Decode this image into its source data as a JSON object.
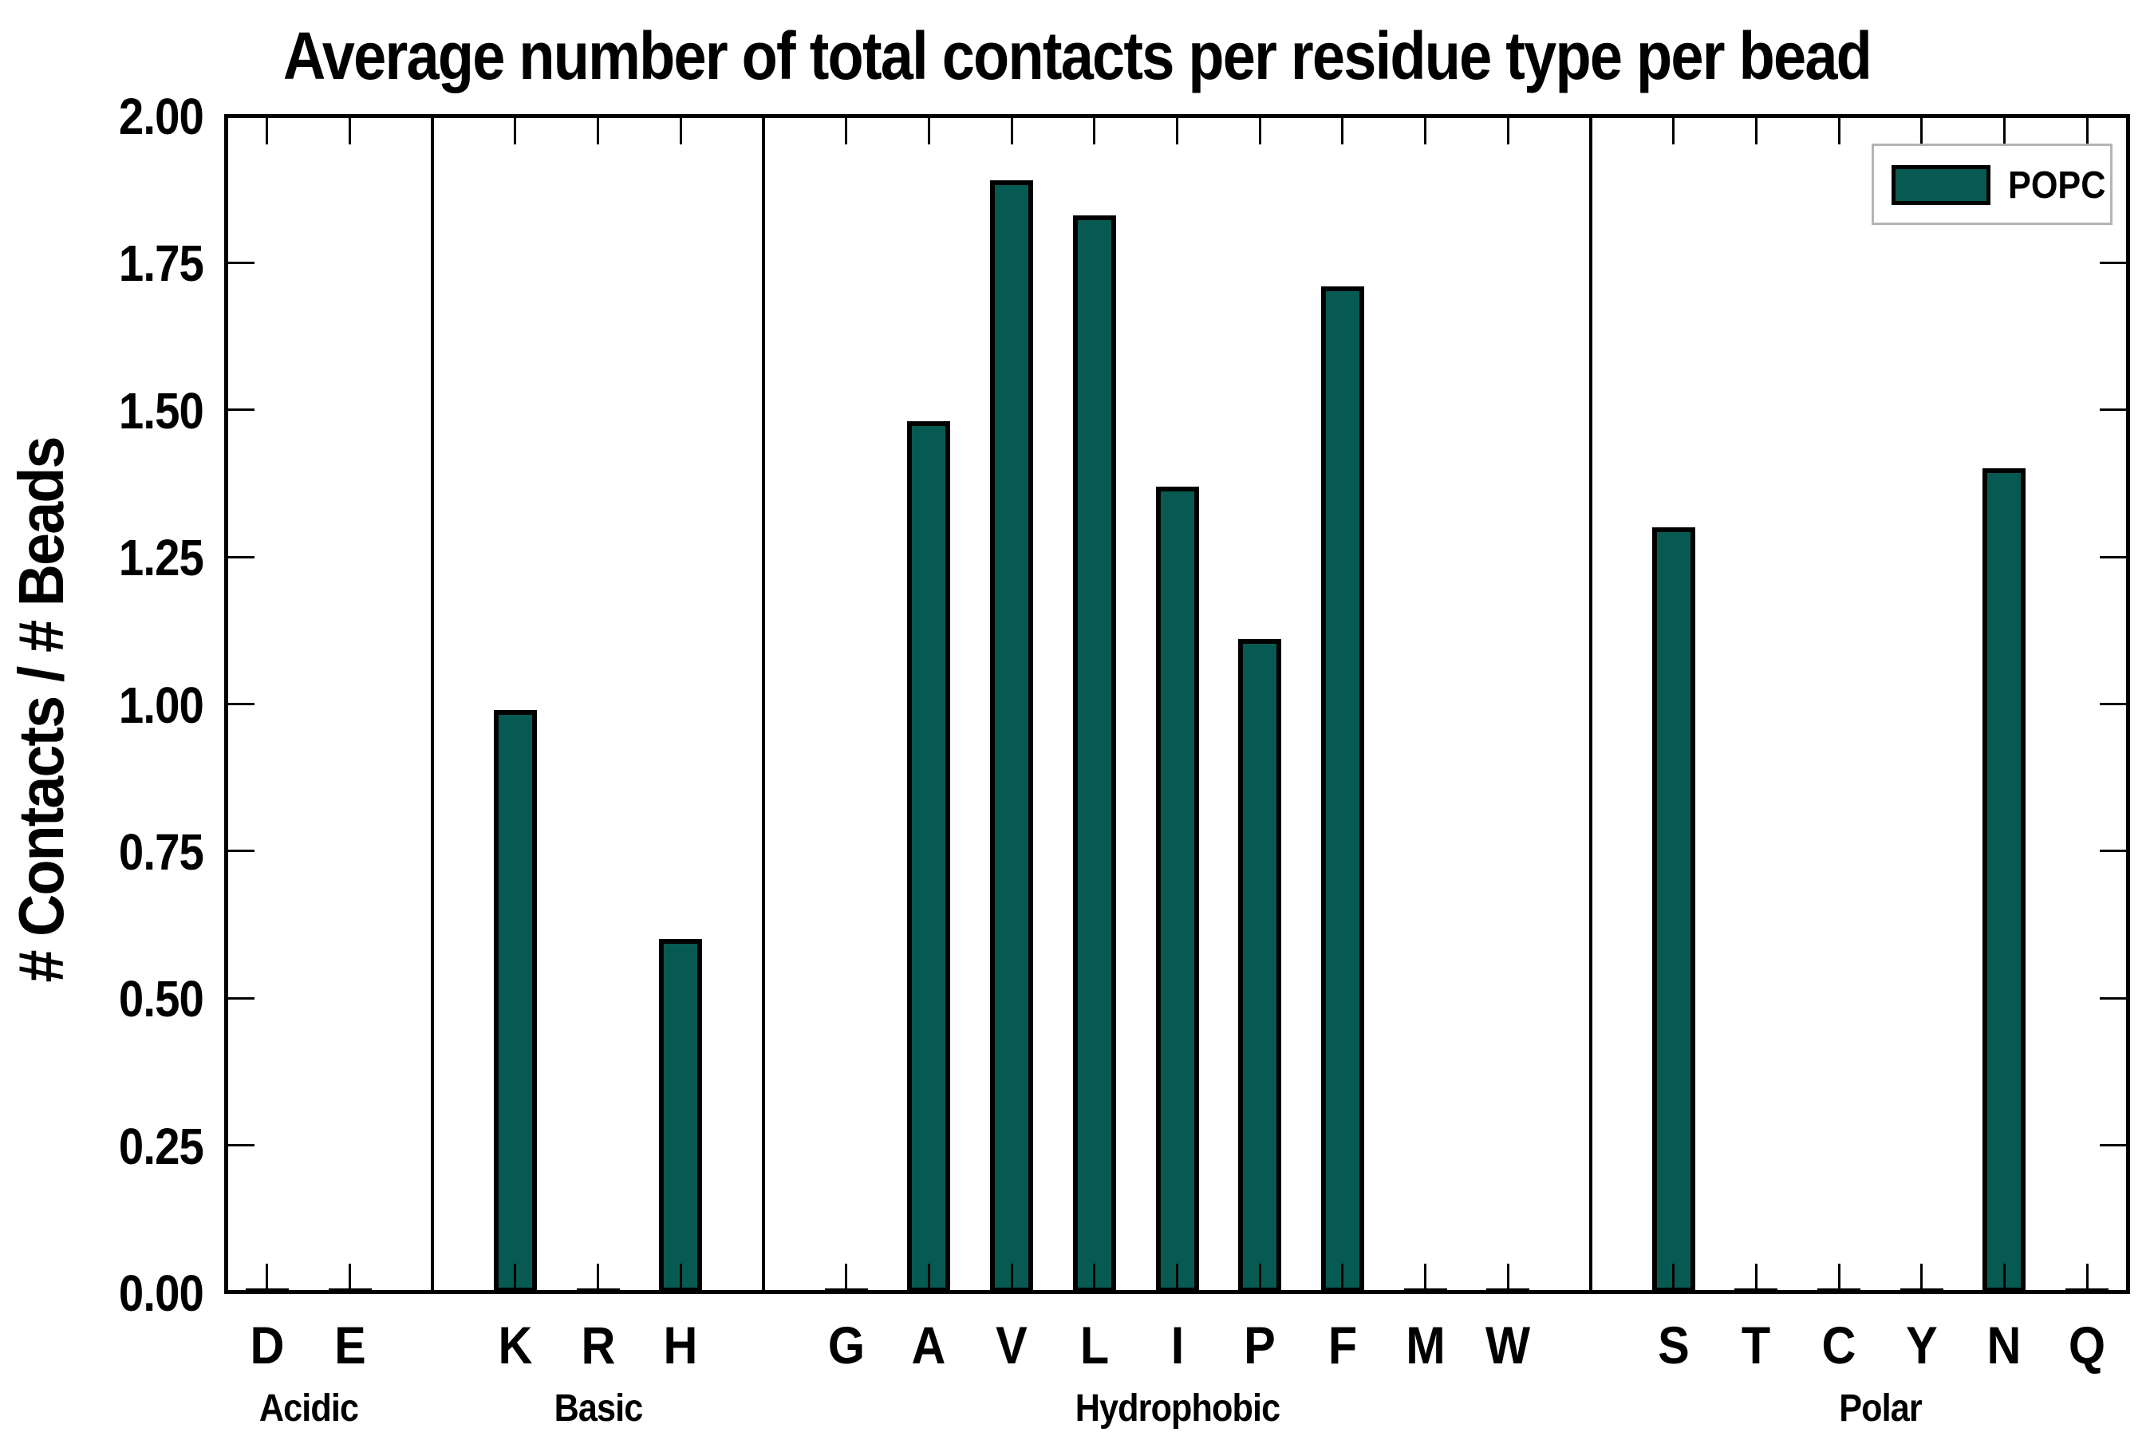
{
  "chart_data": {
    "type": "bar",
    "title": "Average number of total contacts per residue type per bead",
    "ylabel": "# Contacts / # Beads",
    "xlabel": "",
    "ylim": [
      0.0,
      2.0
    ],
    "ytick_step": 0.25,
    "ytick_labels": [
      "0.00",
      "0.25",
      "0.50",
      "0.75",
      "1.00",
      "1.25",
      "1.50",
      "1.75",
      "2.00"
    ],
    "grid": false,
    "legend": {
      "position": "upper right",
      "entries": [
        "POPC"
      ]
    },
    "bar_color": "#075a51",
    "bar_edge_color": "#000000",
    "groups": [
      {
        "name": "Acidic",
        "residues": [
          "D",
          "E"
        ],
        "values": [
          0,
          0
        ]
      },
      {
        "name": "Basic",
        "residues": [
          "K",
          "R",
          "H"
        ],
        "values": [
          0.99,
          0,
          0.6
        ]
      },
      {
        "name": "Hydrophobic",
        "residues": [
          "G",
          "A",
          "V",
          "L",
          "I",
          "P",
          "F",
          "M",
          "W"
        ],
        "values": [
          0,
          1.48,
          1.89,
          1.83,
          1.37,
          1.11,
          1.71,
          0,
          0
        ]
      },
      {
        "name": "Polar",
        "residues": [
          "S",
          "T",
          "C",
          "Y",
          "N",
          "Q"
        ],
        "values": [
          1.3,
          0,
          0,
          0,
          1.4,
          0
        ]
      }
    ],
    "categories": [
      "D",
      "E",
      "K",
      "R",
      "H",
      "G",
      "A",
      "V",
      "L",
      "I",
      "P",
      "F",
      "M",
      "W",
      "S",
      "T",
      "C",
      "Y",
      "N",
      "Q"
    ],
    "values": [
      0,
      0,
      0.99,
      0,
      0.6,
      0,
      1.48,
      1.89,
      1.83,
      1.37,
      1.11,
      1.71,
      0,
      0,
      1.3,
      0,
      0,
      0,
      1.4,
      0
    ]
  },
  "legend": {
    "label": "POPC"
  }
}
